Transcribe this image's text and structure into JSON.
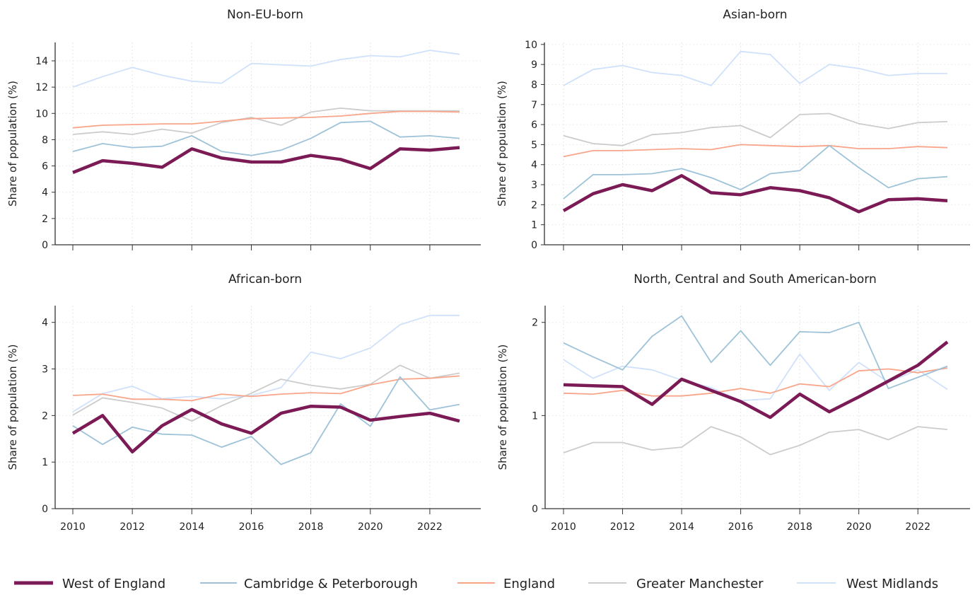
{
  "chart_data": [
    {
      "type": "line",
      "title": "Non-EU-born",
      "ylabel": "Share of population (%)",
      "xlabel": "",
      "x": [
        2010,
        2011,
        2012,
        2013,
        2014,
        2015,
        2016,
        2017,
        2018,
        2019,
        2020,
        2021,
        2022,
        2023
      ],
      "ylim": [
        0,
        15.4
      ],
      "yticks": [
        0,
        2,
        4,
        6,
        8,
        10,
        12,
        14
      ],
      "xticks": [
        2010,
        2012,
        2014,
        2016,
        2018,
        2020,
        2022
      ],
      "show_xtick_labels": false,
      "grid": true,
      "series": [
        {
          "name": "West of England",
          "values": [
            5.5,
            6.4,
            6.2,
            5.9,
            7.3,
            6.6,
            6.3,
            6.3,
            6.8,
            6.5,
            5.8,
            7.3,
            7.2,
            7.4
          ]
        },
        {
          "name": "Cambridge & Peterborough",
          "values": [
            7.1,
            7.7,
            7.4,
            7.5,
            8.3,
            7.1,
            6.8,
            7.2,
            8.1,
            9.3,
            9.4,
            8.2,
            8.3,
            8.1
          ]
        },
        {
          "name": "England",
          "values": [
            8.9,
            9.1,
            9.15,
            9.2,
            9.2,
            9.4,
            9.6,
            9.65,
            9.7,
            9.8,
            10.0,
            10.15,
            10.15,
            10.1
          ]
        },
        {
          "name": "Greater Manchester",
          "values": [
            8.4,
            8.6,
            8.4,
            8.8,
            8.5,
            9.3,
            9.7,
            9.1,
            10.1,
            10.4,
            10.2,
            10.2,
            10.2,
            10.2
          ]
        },
        {
          "name": "West Midlands",
          "values": [
            12.0,
            12.8,
            13.5,
            12.9,
            12.45,
            12.3,
            13.8,
            13.7,
            13.6,
            14.1,
            14.4,
            14.3,
            14.8,
            14.5
          ]
        }
      ]
    },
    {
      "type": "line",
      "title": "Asian-born",
      "ylabel": "Share of population (%)",
      "xlabel": "",
      "x": [
        2010,
        2011,
        2012,
        2013,
        2014,
        2015,
        2016,
        2017,
        2018,
        2019,
        2020,
        2021,
        2022,
        2023
      ],
      "ylim": [
        0,
        10.1
      ],
      "yticks": [
        0,
        1,
        2,
        3,
        4,
        5,
        6,
        7,
        8,
        9,
        10
      ],
      "xticks": [
        2010,
        2012,
        2014,
        2016,
        2018,
        2020,
        2022
      ],
      "show_xtick_labels": false,
      "grid": true,
      "series": [
        {
          "name": "West of England",
          "values": [
            1.7,
            2.55,
            3.0,
            2.7,
            3.45,
            2.6,
            2.5,
            2.85,
            2.7,
            2.35,
            1.65,
            2.25,
            2.3,
            2.2
          ]
        },
        {
          "name": "Cambridge & Peterborough",
          "values": [
            2.3,
            3.5,
            3.5,
            3.55,
            3.8,
            3.35,
            2.75,
            3.55,
            3.7,
            4.95,
            3.85,
            2.85,
            3.3,
            3.4
          ]
        },
        {
          "name": "England",
          "values": [
            4.4,
            4.7,
            4.7,
            4.75,
            4.8,
            4.75,
            5.0,
            4.95,
            4.9,
            4.95,
            4.8,
            4.8,
            4.9,
            4.85
          ]
        },
        {
          "name": "Greater Manchester",
          "values": [
            5.45,
            5.05,
            4.95,
            5.5,
            5.6,
            5.85,
            5.95,
            5.35,
            6.5,
            6.55,
            6.05,
            5.8,
            6.1,
            6.15
          ]
        },
        {
          "name": "West Midlands",
          "values": [
            7.95,
            8.75,
            8.95,
            8.6,
            8.45,
            7.95,
            9.65,
            9.5,
            8.05,
            9.0,
            8.8,
            8.45,
            8.55,
            8.55
          ]
        }
      ]
    },
    {
      "type": "line",
      "title": "African-born",
      "ylabel": "Share of population (%)",
      "xlabel": "",
      "x": [
        2010,
        2011,
        2012,
        2013,
        2014,
        2015,
        2016,
        2017,
        2018,
        2019,
        2020,
        2021,
        2022,
        2023
      ],
      "ylim": [
        0,
        4.36
      ],
      "yticks": [
        0,
        1,
        2,
        3,
        4
      ],
      "xticks": [
        2010,
        2012,
        2014,
        2016,
        2018,
        2020,
        2022
      ],
      "show_xtick_labels": true,
      "grid": true,
      "series": [
        {
          "name": "West of England",
          "values": [
            1.62,
            2.0,
            1.22,
            1.78,
            2.13,
            1.82,
            1.62,
            2.05,
            2.2,
            2.18,
            1.9,
            1.98,
            2.05,
            1.88
          ]
        },
        {
          "name": "Cambridge & Peterborough",
          "values": [
            1.78,
            1.38,
            1.75,
            1.6,
            1.58,
            1.32,
            1.55,
            0.95,
            1.2,
            2.25,
            1.77,
            2.83,
            2.12,
            2.24
          ]
        },
        {
          "name": "England",
          "values": [
            2.43,
            2.46,
            2.35,
            2.35,
            2.32,
            2.46,
            2.41,
            2.46,
            2.49,
            2.47,
            2.66,
            2.78,
            2.8,
            2.85
          ]
        },
        {
          "name": "Greater Manchester",
          "values": [
            2.01,
            2.38,
            2.28,
            2.16,
            1.88,
            2.21,
            2.48,
            2.78,
            2.65,
            2.57,
            2.67,
            3.08,
            2.8,
            2.91
          ]
        },
        {
          "name": "West Midlands",
          "values": [
            2.08,
            2.47,
            2.63,
            2.36,
            2.41,
            2.36,
            2.43,
            2.6,
            3.36,
            3.22,
            3.45,
            3.95,
            4.15,
            4.15
          ]
        }
      ]
    },
    {
      "type": "line",
      "title": "North, Central and South American-born",
      "ylabel": "Share of population (%)",
      "xlabel": "",
      "x": [
        2010,
        2011,
        2012,
        2013,
        2014,
        2015,
        2016,
        2017,
        2018,
        2019,
        2020,
        2021,
        2022,
        2023
      ],
      "ylim": [
        0,
        2.18
      ],
      "yticks": [
        0,
        1,
        2
      ],
      "xticks": [
        2010,
        2012,
        2014,
        2016,
        2018,
        2020,
        2022
      ],
      "show_xtick_labels": true,
      "grid": true,
      "series": [
        {
          "name": "West of England",
          "values": [
            1.33,
            1.32,
            1.31,
            1.12,
            1.39,
            1.27,
            1.15,
            0.98,
            1.23,
            1.04,
            1.2,
            1.37,
            1.54,
            1.79
          ]
        },
        {
          "name": "Cambridge & Peterborough",
          "values": [
            1.78,
            1.63,
            1.49,
            1.85,
            2.07,
            1.57,
            1.91,
            1.54,
            1.9,
            1.89,
            2.0,
            1.29,
            1.41,
            1.53
          ]
        },
        {
          "name": "England",
          "values": [
            1.24,
            1.23,
            1.27,
            1.21,
            1.21,
            1.24,
            1.29,
            1.24,
            1.34,
            1.31,
            1.48,
            1.5,
            1.46,
            1.51
          ]
        },
        {
          "name": "Greater Manchester",
          "values": [
            0.6,
            0.71,
            0.71,
            0.63,
            0.66,
            0.88,
            0.77,
            0.58,
            0.68,
            0.82,
            0.85,
            0.74,
            0.88,
            0.85
          ]
        },
        {
          "name": "West Midlands",
          "values": [
            1.6,
            1.4,
            1.53,
            1.49,
            1.38,
            1.3,
            1.16,
            1.18,
            1.66,
            1.27,
            1.57,
            1.36,
            1.49,
            1.28
          ]
        }
      ]
    }
  ],
  "legend": {
    "placement": "bottom",
    "items": [
      {
        "label": "West of England",
        "color": "#7b1a55"
      },
      {
        "label": "Cambridge & Peterborough",
        "color": "#9ec3d9"
      },
      {
        "label": "England",
        "color": "#f9a58a"
      },
      {
        "label": "Greater Manchester",
        "color": "#cccccc"
      },
      {
        "label": "West Midlands",
        "color": "#cfe1fb"
      }
    ]
  }
}
